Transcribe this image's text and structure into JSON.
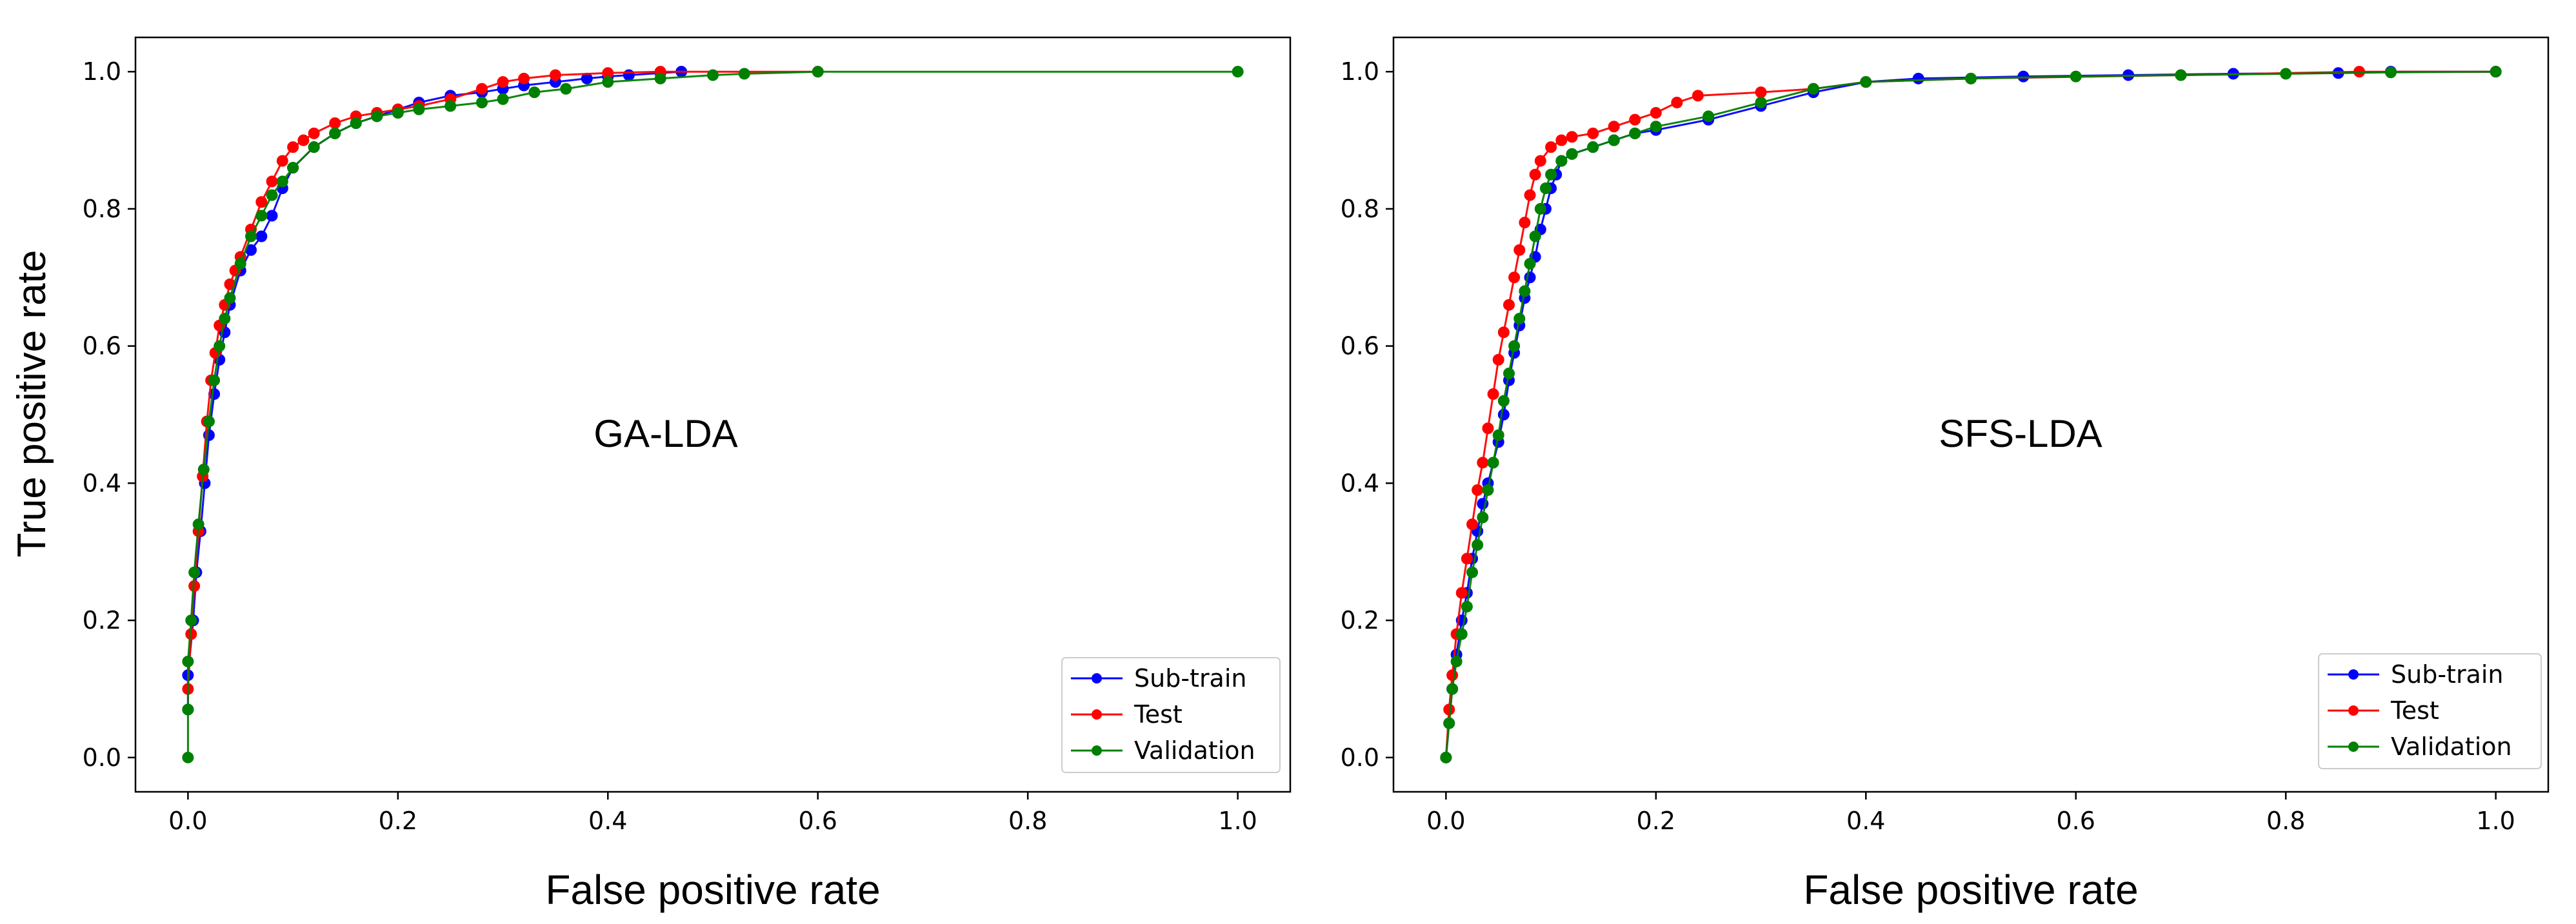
{
  "figure": {
    "ylabel": "True positive rate"
  },
  "legend_entries": [
    "Sub-train",
    "Test",
    "Validation"
  ],
  "colors": {
    "Sub-train": "#0000ff",
    "Test": "#ff0000",
    "Validation": "#008000"
  },
  "chart_data": [
    {
      "type": "line",
      "title": "",
      "annotation": "GA-LDA",
      "xlabel": "False positive rate",
      "ylabel": "True positive rate",
      "xlim": [
        -0.05,
        1.05
      ],
      "ylim": [
        -0.05,
        1.05
      ],
      "xticks": [
        "0.0",
        "0.2",
        "0.4",
        "0.6",
        "0.8",
        "1.0"
      ],
      "yticks": [
        "0.0",
        "0.2",
        "0.4",
        "0.6",
        "0.8",
        "1.0"
      ],
      "grid": false,
      "legend": "lower-right",
      "series": [
        {
          "name": "Sub-train",
          "color": "#0000ff",
          "x": [
            0.0,
            0.0,
            0.005,
            0.008,
            0.012,
            0.016,
            0.02,
            0.025,
            0.03,
            0.035,
            0.04,
            0.05,
            0.06,
            0.07,
            0.08,
            0.09,
            0.1,
            0.12,
            0.14,
            0.16,
            0.18,
            0.2,
            0.22,
            0.25,
            0.28,
            0.3,
            0.32,
            0.35,
            0.38,
            0.4,
            0.42,
            0.45,
            0.47
          ],
          "y": [
            0.07,
            0.12,
            0.2,
            0.27,
            0.33,
            0.4,
            0.47,
            0.53,
            0.58,
            0.62,
            0.66,
            0.71,
            0.74,
            0.76,
            0.79,
            0.83,
            0.86,
            0.89,
            0.91,
            0.925,
            0.935,
            0.945,
            0.955,
            0.965,
            0.97,
            0.975,
            0.98,
            0.985,
            0.99,
            0.993,
            0.995,
            0.998,
            1.0
          ]
        },
        {
          "name": "Test",
          "color": "#ff0000",
          "x": [
            0.0,
            0.003,
            0.006,
            0.01,
            0.014,
            0.018,
            0.022,
            0.026,
            0.03,
            0.035,
            0.04,
            0.045,
            0.05,
            0.06,
            0.07,
            0.08,
            0.09,
            0.1,
            0.11,
            0.12,
            0.14,
            0.16,
            0.18,
            0.2,
            0.22,
            0.25,
            0.28,
            0.3,
            0.32,
            0.35,
            0.4,
            0.45,
            0.6
          ],
          "y": [
            0.1,
            0.18,
            0.25,
            0.33,
            0.41,
            0.49,
            0.55,
            0.59,
            0.63,
            0.66,
            0.69,
            0.71,
            0.73,
            0.77,
            0.81,
            0.84,
            0.87,
            0.89,
            0.9,
            0.91,
            0.925,
            0.935,
            0.94,
            0.945,
            0.95,
            0.96,
            0.975,
            0.985,
            0.99,
            0.995,
            0.998,
            1.0,
            1.0
          ]
        },
        {
          "name": "Validation",
          "color": "#008000",
          "x": [
            0.0,
            0.0,
            0.0,
            0.003,
            0.006,
            0.01,
            0.015,
            0.02,
            0.025,
            0.03,
            0.035,
            0.04,
            0.05,
            0.06,
            0.07,
            0.08,
            0.09,
            0.1,
            0.12,
            0.14,
            0.16,
            0.18,
            0.2,
            0.22,
            0.25,
            0.28,
            0.3,
            0.33,
            0.36,
            0.4,
            0.45,
            0.5,
            0.53,
            0.6,
            1.0
          ],
          "y": [
            0.0,
            0.07,
            0.14,
            0.2,
            0.27,
            0.34,
            0.42,
            0.49,
            0.55,
            0.6,
            0.64,
            0.67,
            0.72,
            0.76,
            0.79,
            0.82,
            0.84,
            0.86,
            0.89,
            0.91,
            0.925,
            0.935,
            0.94,
            0.945,
            0.95,
            0.955,
            0.96,
            0.97,
            0.975,
            0.985,
            0.99,
            0.995,
            0.997,
            1.0,
            1.0
          ]
        }
      ]
    },
    {
      "type": "line",
      "title": "",
      "annotation": "SFS-LDA",
      "xlabel": "False positive rate",
      "ylabel": "",
      "xlim": [
        -0.05,
        1.05
      ],
      "ylim": [
        -0.05,
        1.05
      ],
      "xticks": [
        "0.0",
        "0.2",
        "0.4",
        "0.6",
        "0.8",
        "1.0"
      ],
      "yticks": [
        "0.0",
        "0.2",
        "0.4",
        "0.6",
        "0.8",
        "1.0"
      ],
      "grid": false,
      "legend": "lower-right",
      "series": [
        {
          "name": "Sub-train",
          "color": "#0000ff",
          "x": [
            0.0,
            0.003,
            0.006,
            0.01,
            0.015,
            0.02,
            0.025,
            0.03,
            0.035,
            0.04,
            0.045,
            0.05,
            0.055,
            0.06,
            0.065,
            0.07,
            0.075,
            0.08,
            0.085,
            0.09,
            0.095,
            0.1,
            0.105,
            0.11,
            0.12,
            0.14,
            0.16,
            0.18,
            0.2,
            0.25,
            0.3,
            0.35,
            0.4,
            0.45,
            0.55,
            0.65,
            0.75,
            0.85,
            0.9,
            1.0
          ],
          "y": [
            0.0,
            0.05,
            0.1,
            0.15,
            0.2,
            0.24,
            0.29,
            0.33,
            0.37,
            0.4,
            0.43,
            0.46,
            0.5,
            0.55,
            0.59,
            0.63,
            0.67,
            0.7,
            0.73,
            0.77,
            0.8,
            0.83,
            0.85,
            0.87,
            0.88,
            0.89,
            0.9,
            0.91,
            0.915,
            0.93,
            0.95,
            0.97,
            0.985,
            0.99,
            0.993,
            0.995,
            0.997,
            0.998,
            1.0,
            1.0
          ]
        },
        {
          "name": "Test",
          "color": "#ff0000",
          "x": [
            0.0,
            0.003,
            0.006,
            0.01,
            0.015,
            0.02,
            0.025,
            0.03,
            0.035,
            0.04,
            0.045,
            0.05,
            0.055,
            0.06,
            0.065,
            0.07,
            0.075,
            0.08,
            0.085,
            0.09,
            0.1,
            0.11,
            0.12,
            0.14,
            0.16,
            0.18,
            0.2,
            0.22,
            0.24,
            0.3,
            0.35,
            0.4,
            0.5,
            0.7,
            0.87,
            1.0
          ],
          "y": [
            0.0,
            0.07,
            0.12,
            0.18,
            0.24,
            0.29,
            0.34,
            0.39,
            0.43,
            0.48,
            0.53,
            0.58,
            0.62,
            0.66,
            0.7,
            0.74,
            0.78,
            0.82,
            0.85,
            0.87,
            0.89,
            0.9,
            0.905,
            0.91,
            0.92,
            0.93,
            0.94,
            0.955,
            0.965,
            0.97,
            0.975,
            0.985,
            0.99,
            0.995,
            1.0,
            1.0
          ]
        },
        {
          "name": "Validation",
          "color": "#008000",
          "x": [
            0.0,
            0.003,
            0.006,
            0.01,
            0.015,
            0.02,
            0.025,
            0.03,
            0.035,
            0.04,
            0.045,
            0.05,
            0.055,
            0.06,
            0.065,
            0.07,
            0.075,
            0.08,
            0.085,
            0.09,
            0.095,
            0.1,
            0.11,
            0.12,
            0.14,
            0.16,
            0.18,
            0.2,
            0.25,
            0.3,
            0.35,
            0.4,
            0.5,
            0.6,
            0.7,
            0.8,
            0.9,
            1.0
          ],
          "y": [
            0.0,
            0.05,
            0.1,
            0.14,
            0.18,
            0.22,
            0.27,
            0.31,
            0.35,
            0.39,
            0.43,
            0.47,
            0.52,
            0.56,
            0.6,
            0.64,
            0.68,
            0.72,
            0.76,
            0.8,
            0.83,
            0.85,
            0.87,
            0.88,
            0.89,
            0.9,
            0.91,
            0.92,
            0.935,
            0.955,
            0.975,
            0.985,
            0.99,
            0.993,
            0.995,
            0.997,
            0.999,
            1.0
          ]
        }
      ]
    }
  ]
}
